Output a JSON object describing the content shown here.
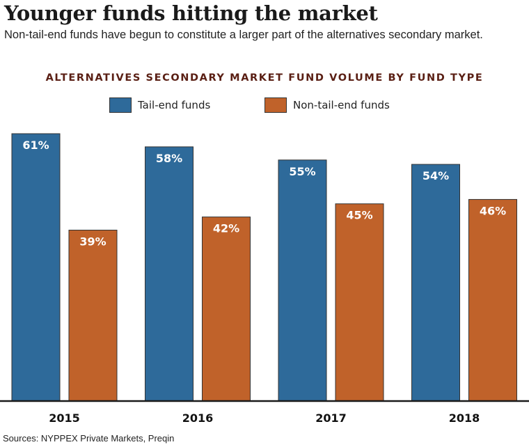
{
  "headline": "Younger funds hitting the market",
  "subhead": "Non-tail-end funds have begun to constitute a larger part of the alternatives secondary market.",
  "source": "Sources: NYPPEX Private Markets, Preqin",
  "colors": {
    "tail_end": "#2e6a9a",
    "non_tail_end": "#c0622a",
    "title": "#5a1f14"
  },
  "chart_data": {
    "type": "bar",
    "title": "ALTERNATIVES SECONDARY MARKET FUND VOLUME BY FUND TYPE",
    "categories": [
      "2015",
      "2016",
      "2017",
      "2018"
    ],
    "series": [
      {
        "name": "Tail-end funds",
        "values": [
          61,
          58,
          55,
          54
        ],
        "labels": [
          "61%",
          "58%",
          "55%",
          "54%"
        ]
      },
      {
        "name": "Non-tail-end funds",
        "values": [
          39,
          42,
          45,
          46
        ],
        "labels": [
          "39%",
          "42%",
          "45%",
          "46%"
        ]
      }
    ],
    "ylim": [
      0,
      61
    ],
    "legend_position": "top-center",
    "grid": false
  }
}
